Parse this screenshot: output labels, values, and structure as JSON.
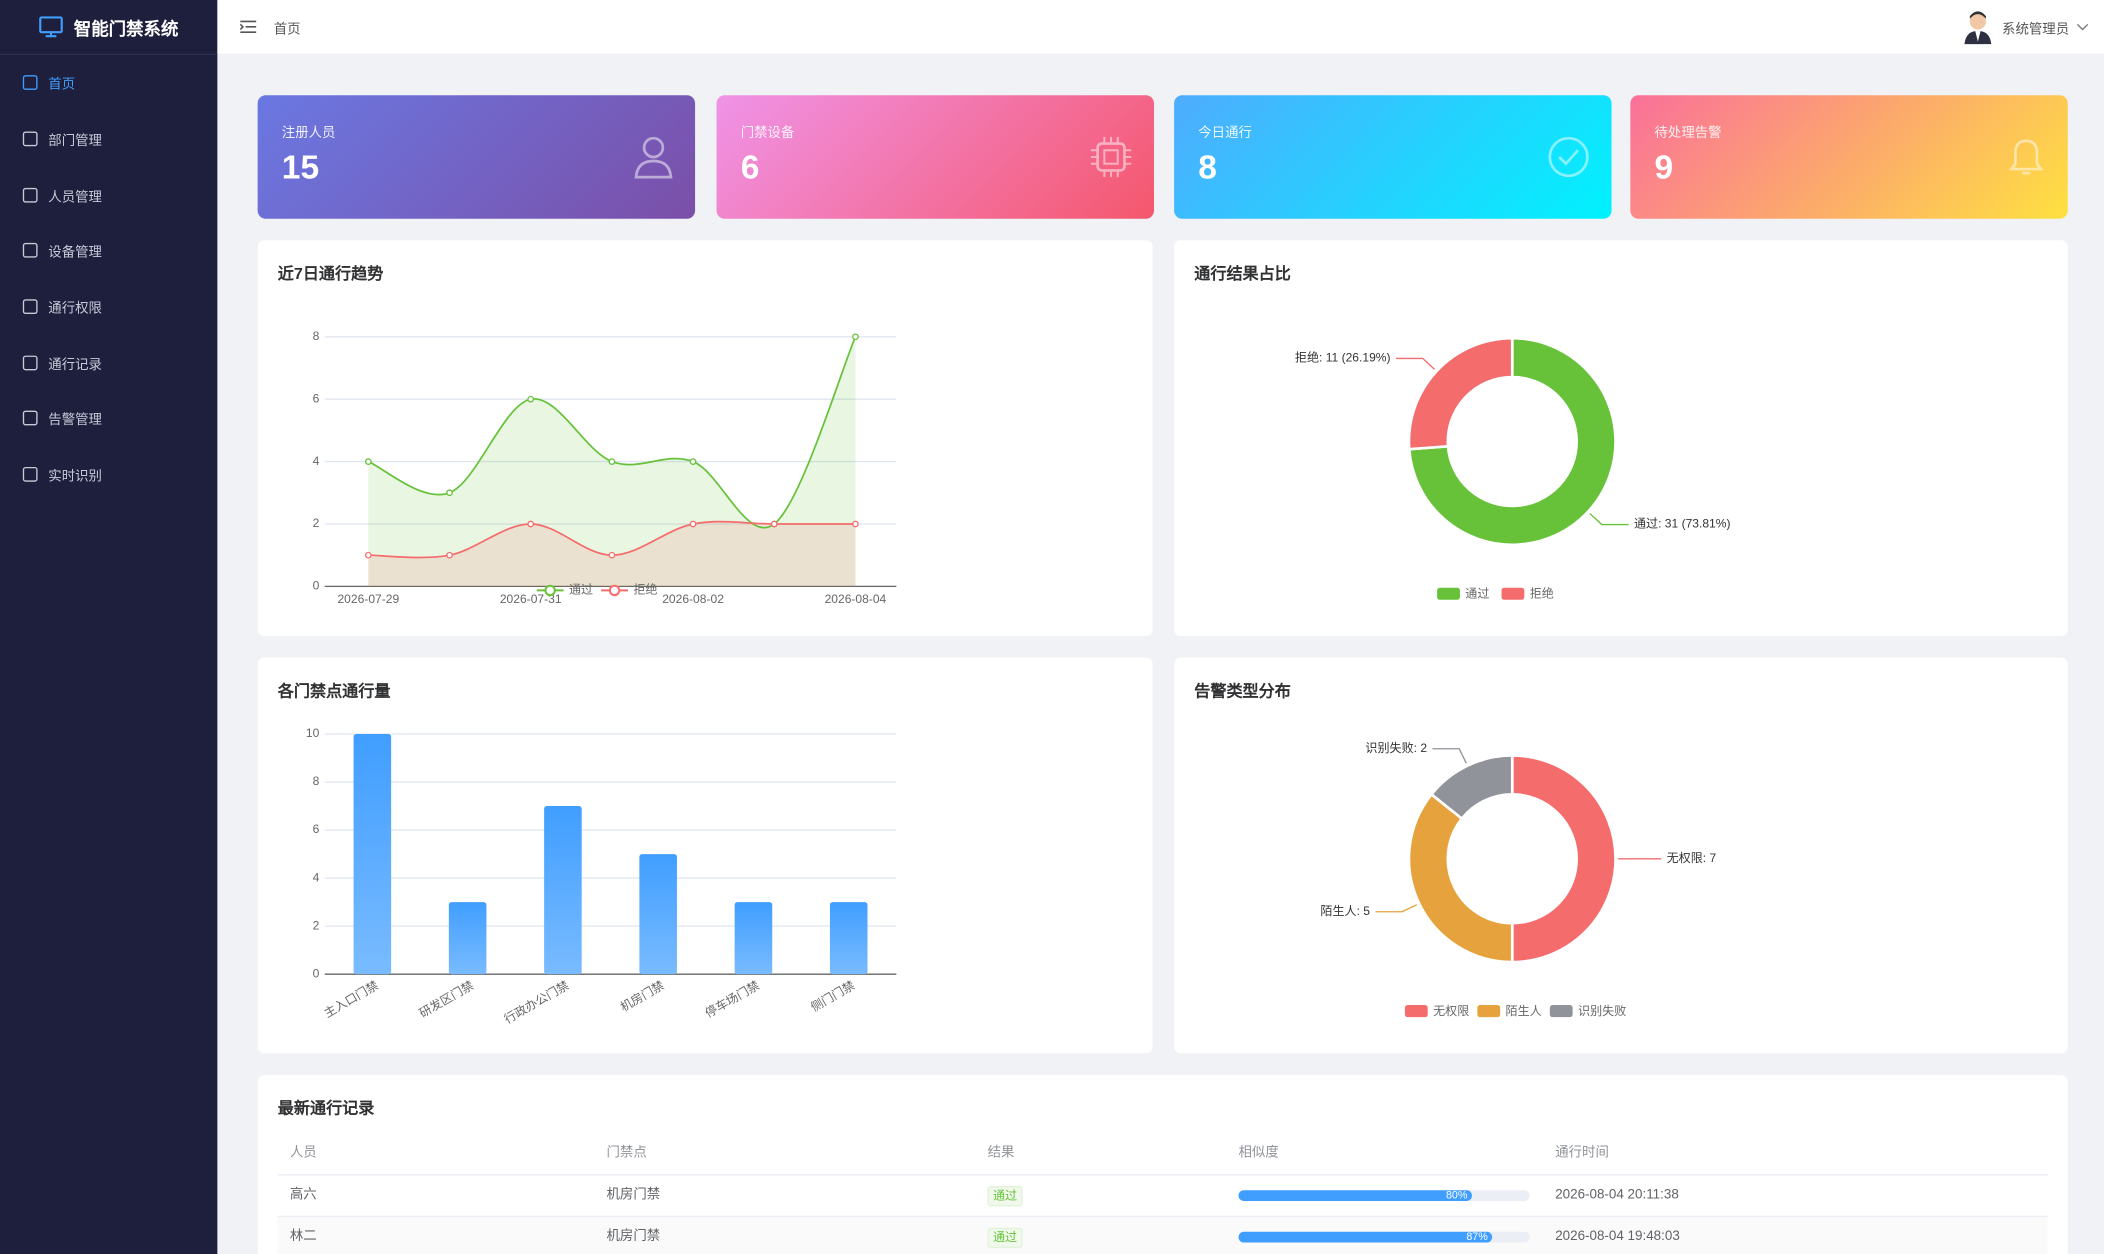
{
  "app": {
    "title": "智能门禁系统"
  },
  "sidebar": {
    "items": [
      "首页",
      "部门管理",
      "人员管理",
      "设备管理",
      "通行权限",
      "通行记录",
      "告警管理",
      "实时识别"
    ]
  },
  "header": {
    "breadcrumb": "首页",
    "user": "系统管理员"
  },
  "stats": [
    {
      "label": "注册人员",
      "value": 15
    },
    {
      "label": "门禁设备",
      "value": 6
    },
    {
      "label": "今日通行",
      "value": 8
    },
    {
      "label": "待处理告警",
      "value": 9
    }
  ],
  "chart_data": [
    {
      "type": "line",
      "title": "近7日通行趋势",
      "categories": [
        "2026-07-29",
        null,
        "2026-07-31",
        null,
        "2026-08-02",
        null,
        "2026-08-04"
      ],
      "series": [
        {
          "name": "通过",
          "color": "#67c23a",
          "values": [
            4,
            3,
            6,
            4,
            4,
            2,
            8
          ]
        },
        {
          "name": "拒绝",
          "color": "#f56c6c",
          "values": [
            1,
            1,
            2,
            1,
            2,
            2,
            2
          ]
        }
      ],
      "ylim": [
        0,
        8
      ],
      "yticks": [
        0,
        2,
        4,
        6,
        8
      ],
      "grid": true,
      "legend": "bottom"
    },
    {
      "type": "pie",
      "title": "通行结果占比",
      "categories": [
        "通过",
        "拒绝"
      ],
      "values": [
        31,
        11
      ],
      "value_labels": [
        "通过: 31 (73.81%)",
        "拒绝: 11 (26.19%)"
      ],
      "colors": [
        "#67c23a",
        "#f56c6c"
      ],
      "legend": "bottom"
    },
    {
      "type": "bar",
      "title": "各门禁点通行量",
      "categories": [
        "主入口门禁",
        "研发区门禁",
        "行政办公门禁",
        "机房门禁",
        "停车场门禁",
        "侧门门禁"
      ],
      "values": [
        10,
        3,
        7,
        5,
        3,
        3
      ],
      "color": "#409eff",
      "ylim": [
        0,
        10
      ],
      "yticks": [
        0,
        2,
        4,
        6,
        8,
        10
      ],
      "grid": true
    },
    {
      "type": "pie",
      "title": "告警类型分布",
      "categories": [
        "无权限",
        "陌生人",
        "识别失败"
      ],
      "values": [
        7,
        5,
        2
      ],
      "value_labels": [
        "无权限: 7",
        "陌生人: 5",
        "识别失败: 2"
      ],
      "colors": [
        "#f56c6c",
        "#e6a23c",
        "#909399"
      ],
      "legend": "bottom"
    }
  ],
  "table": {
    "title": "最新通行记录",
    "columns": [
      "人员",
      "门禁点",
      "结果",
      "相似度",
      "通行时间"
    ],
    "rows": [
      [
        "高六",
        "机房门禁",
        "通过",
        {
          "value": 80,
          "label": "80%"
        },
        "2026-08-04 20:11:38"
      ],
      [
        "林二",
        "机房门禁",
        "通过",
        {
          "value": 87,
          "label": "87%"
        },
        "2026-08-04 19:48:03"
      ]
    ]
  }
}
